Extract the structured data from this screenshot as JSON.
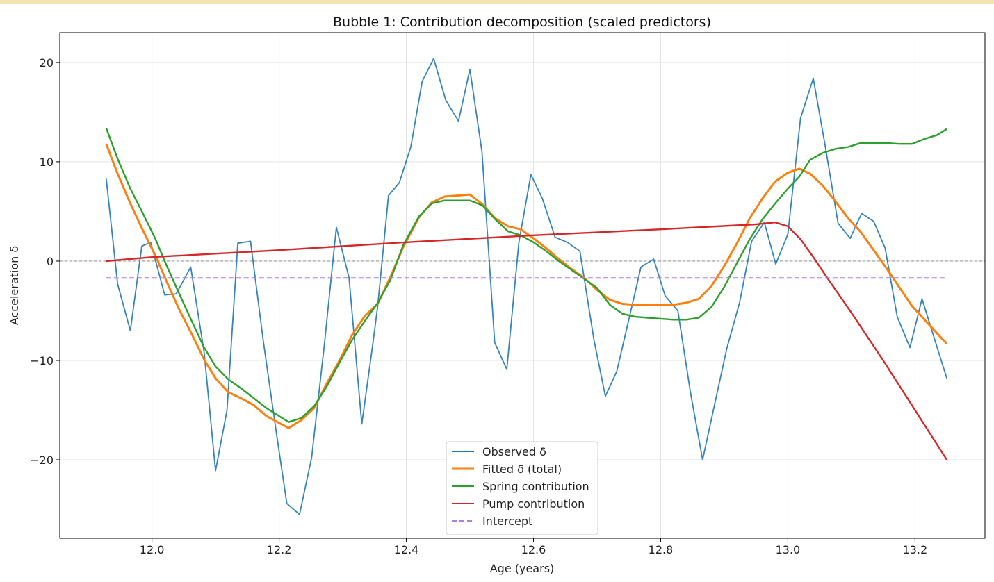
{
  "chart_data": {
    "type": "line",
    "title": "Bubble 1: Contribution decomposition (scaled predictors)",
    "xlabel": "Age (years)",
    "ylabel": "Acceleration δ",
    "xlim": [
      11.855,
      13.31
    ],
    "ylim": [
      -27.9,
      23.0
    ],
    "x_ticks": [
      12.0,
      12.2,
      12.4,
      12.6,
      12.8,
      13.0,
      13.2
    ],
    "x_tick_labels": [
      "12.0",
      "12.2",
      "12.4",
      "12.6",
      "12.8",
      "13.0",
      "13.2"
    ],
    "y_ticks": [
      20,
      10,
      0,
      -10,
      -20
    ],
    "y_tick_labels": [
      "20",
      "10",
      "0",
      "−10",
      "−20"
    ],
    "grid": true,
    "zero_line": 0,
    "legend_position": "bottom-center",
    "legend_order": [
      "observed",
      "fitted",
      "spring",
      "pump",
      "intercept"
    ],
    "series": {
      "observed": {
        "name": "Observed δ",
        "color": "#1f77b4",
        "style": "solid",
        "x": [
          11.928,
          11.946,
          11.966,
          11.984,
          11.998,
          12.02,
          12.038,
          12.061,
          12.082,
          12.1,
          12.118,
          12.135,
          12.155,
          12.175,
          12.195,
          12.212,
          12.232,
          12.251,
          12.271,
          12.29,
          12.31,
          12.33,
          12.348,
          12.355,
          12.372,
          12.389,
          12.407,
          12.425,
          12.443,
          12.462,
          12.482,
          12.5,
          12.519,
          12.539,
          12.558,
          12.577,
          12.596,
          12.614,
          12.634,
          12.653,
          12.673,
          12.695,
          12.713,
          12.731,
          12.751,
          12.769,
          12.789,
          12.807,
          12.827,
          12.847,
          12.866,
          12.886,
          12.904,
          12.924,
          12.943,
          12.963,
          12.981,
          13.0,
          13.02,
          13.04,
          13.059,
          13.079,
          13.098,
          13.116,
          13.135,
          13.153,
          13.172,
          13.192,
          13.211,
          13.25
        ],
        "y": [
          8.3,
          -2.3,
          -7.0,
          1.5,
          1.9,
          -3.4,
          -3.3,
          -0.6,
          -9.2,
          -21.1,
          -15.0,
          1.8,
          2.0,
          -8.0,
          -17.0,
          -24.4,
          -25.5,
          -19.8,
          -8.5,
          3.4,
          -1.7,
          -16.4,
          -8.0,
          -4.5,
          6.6,
          7.9,
          11.5,
          18.1,
          20.4,
          16.2,
          14.1,
          19.3,
          11.0,
          -8.2,
          -10.9,
          1.9,
          8.7,
          6.3,
          2.4,
          1.9,
          1.0,
          -7.9,
          -13.6,
          -11.1,
          -5.6,
          -0.6,
          0.2,
          -3.5,
          -5.0,
          -13.3,
          -20.0,
          -14.1,
          -8.8,
          -4.2,
          2.0,
          3.9,
          -0.3,
          2.7,
          14.4,
          18.4,
          11.5,
          3.8,
          2.3,
          4.8,
          4.0,
          1.3,
          -5.6,
          -8.7,
          -3.8,
          -11.8
        ]
      },
      "fitted": {
        "name": "Fitted δ (total)",
        "color": "#ff7f0e",
        "style": "solid",
        "x": [
          11.928,
          11.946,
          11.966,
          11.985,
          12.005,
          12.024,
          12.043,
          12.063,
          12.082,
          12.1,
          12.12,
          12.14,
          12.16,
          12.18,
          12.2,
          12.215,
          12.235,
          12.255,
          12.275,
          12.295,
          12.315,
          12.335,
          12.355,
          12.375,
          12.395,
          12.42,
          12.44,
          12.46,
          12.48,
          12.5,
          12.52,
          12.54,
          12.56,
          12.58,
          12.6,
          12.62,
          12.64,
          12.66,
          12.68,
          12.7,
          12.72,
          12.74,
          12.76,
          12.78,
          12.8,
          12.82,
          12.84,
          12.86,
          12.88,
          12.9,
          12.92,
          12.94,
          12.96,
          12.98,
          13.0,
          13.018,
          13.035,
          13.055,
          13.075,
          13.095,
          13.115,
          13.135,
          13.155,
          13.175,
          13.195,
          13.215,
          13.235,
          13.25
        ],
        "y": [
          11.8,
          8.8,
          5.8,
          3.2,
          0.6,
          -2.2,
          -4.9,
          -7.4,
          -9.9,
          -11.8,
          -13.2,
          -13.8,
          -14.5,
          -15.6,
          -16.3,
          -16.8,
          -16.0,
          -14.8,
          -12.3,
          -10.0,
          -7.4,
          -5.5,
          -4.3,
          -1.6,
          1.4,
          4.4,
          5.9,
          6.5,
          6.6,
          6.7,
          5.7,
          4.3,
          3.5,
          3.2,
          2.3,
          1.3,
          0.2,
          -0.8,
          -1.7,
          -2.9,
          -3.9,
          -4.3,
          -4.4,
          -4.4,
          -4.4,
          -4.4,
          -4.2,
          -3.8,
          -2.5,
          -0.5,
          1.8,
          4.3,
          6.3,
          8.0,
          8.9,
          9.3,
          8.8,
          7.6,
          6.0,
          4.3,
          2.9,
          1.1,
          -0.7,
          -2.6,
          -4.5,
          -5.9,
          -7.3,
          -8.3
        ]
      },
      "spring": {
        "name": "Spring contribution",
        "color": "#2ca02c",
        "style": "solid",
        "x": [
          11.928,
          11.946,
          11.966,
          11.985,
          12.005,
          12.024,
          12.043,
          12.063,
          12.082,
          12.1,
          12.12,
          12.14,
          12.16,
          12.18,
          12.2,
          12.215,
          12.235,
          12.255,
          12.275,
          12.295,
          12.315,
          12.335,
          12.355,
          12.375,
          12.395,
          12.42,
          12.44,
          12.46,
          12.48,
          12.5,
          12.52,
          12.54,
          12.56,
          12.58,
          12.6,
          12.62,
          12.64,
          12.66,
          12.68,
          12.7,
          12.72,
          12.74,
          12.76,
          12.78,
          12.8,
          12.82,
          12.84,
          12.86,
          12.88,
          12.9,
          12.92,
          12.94,
          12.96,
          12.98,
          13.0,
          13.018,
          13.035,
          13.055,
          13.075,
          13.095,
          13.115,
          13.135,
          13.155,
          13.175,
          13.195,
          13.215,
          13.235,
          13.25
        ],
        "y": [
          13.4,
          10.3,
          7.3,
          4.9,
          2.3,
          -0.6,
          -3.3,
          -6.1,
          -8.7,
          -10.6,
          -11.9,
          -12.8,
          -13.8,
          -14.8,
          -15.6,
          -16.2,
          -15.8,
          -14.6,
          -12.6,
          -10.2,
          -7.9,
          -6.0,
          -4.2,
          -1.9,
          1.6,
          4.5,
          5.8,
          6.1,
          6.1,
          6.1,
          5.6,
          4.2,
          3.0,
          2.6,
          1.9,
          1.0,
          0.0,
          -0.9,
          -1.8,
          -2.7,
          -4.4,
          -5.3,
          -5.6,
          -5.7,
          -5.8,
          -5.9,
          -5.9,
          -5.7,
          -4.6,
          -2.6,
          -0.2,
          2.2,
          4.2,
          5.8,
          7.3,
          8.5,
          10.2,
          10.9,
          11.3,
          11.5,
          11.9,
          11.9,
          11.9,
          11.8,
          11.8,
          12.3,
          12.7,
          13.3
        ]
      },
      "pump": {
        "name": "Pump contribution",
        "color": "#d62728",
        "style": "solid",
        "x": [
          11.928,
          12.0,
          12.2,
          12.4,
          12.6,
          12.8,
          12.95,
          12.98,
          13.0,
          13.02,
          13.04,
          13.06,
          13.1,
          13.15,
          13.2,
          13.25
        ],
        "y": [
          0.0,
          0.4,
          1.1,
          1.9,
          2.6,
          3.2,
          3.7,
          3.9,
          3.5,
          2.2,
          0.4,
          -1.5,
          -5.2,
          -10.0,
          -15.0,
          -20.0
        ]
      },
      "intercept": {
        "name": "Intercept",
        "color": "#b07ee0",
        "style": "dashed",
        "x": [
          11.928,
          13.25
        ],
        "y": [
          -1.7,
          -1.7
        ]
      }
    }
  }
}
